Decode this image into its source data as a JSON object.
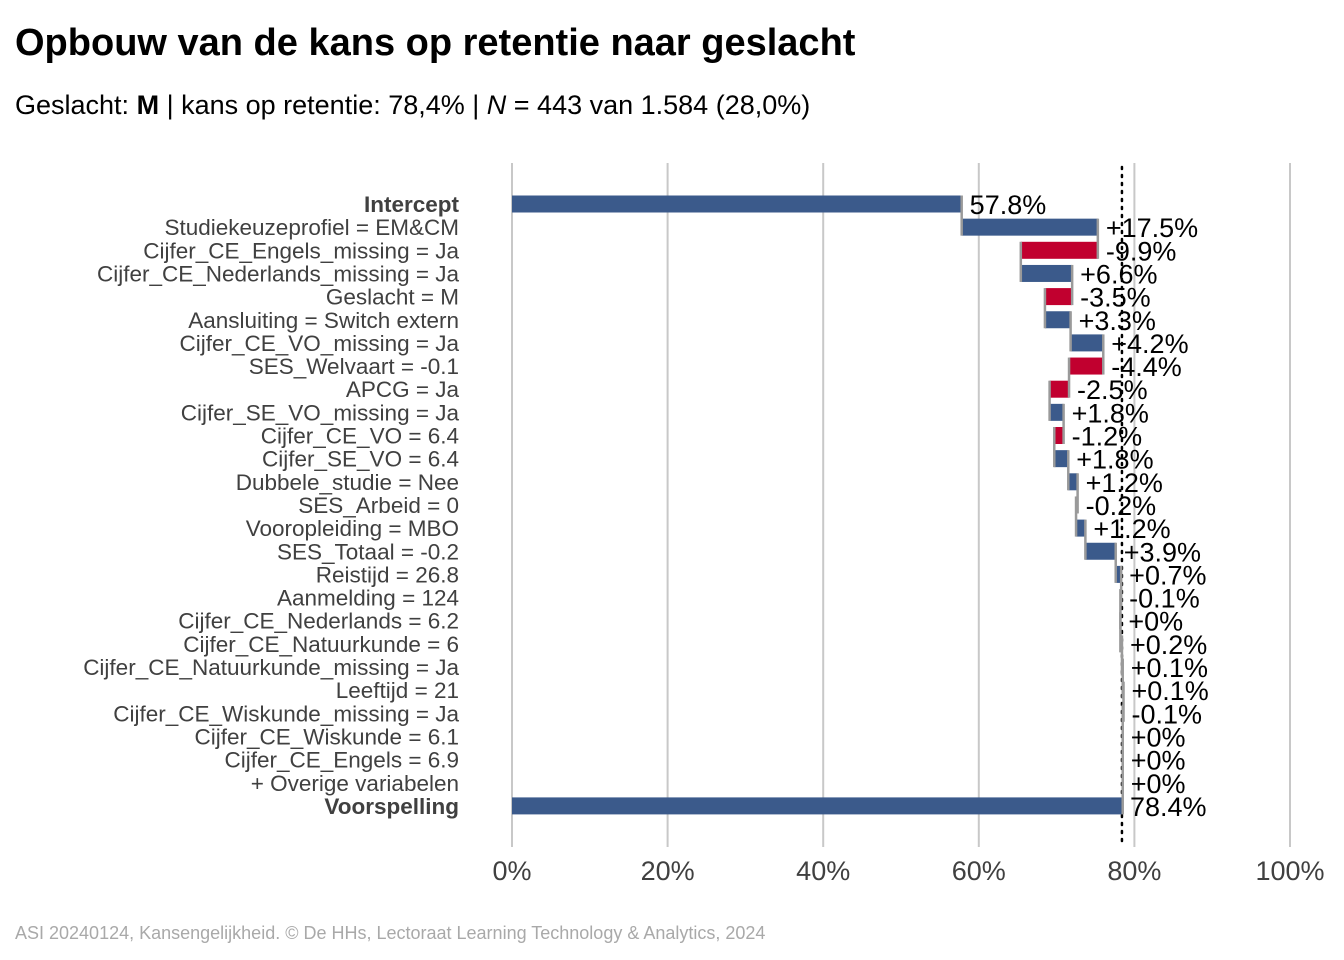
{
  "title": "Opbouw van de kans op retentie naar geslacht",
  "subtitle": {
    "label_geslacht": "Geslacht: ",
    "geslacht_value": "M",
    "sep1": " | kans op retentie: 78,4% | ",
    "n_symbol": "N",
    "n_text": " = 443 van 1.584 (28,0%)"
  },
  "caption": "ASI 20240124, Kansengelijkheid. © De HHs, Lectoraat Learning Technology & Analytics, 2024",
  "colors": {
    "positive": "#3b5a8b",
    "negative": "#c1002f",
    "grid": "#c8c8c8",
    "connector": "#9a9a9a",
    "label_text": "#404040"
  },
  "chart_data": {
    "type": "bar",
    "subtype": "waterfall",
    "orientation": "horizontal",
    "xlim": [
      0,
      100
    ],
    "x_ticks": [
      0,
      20,
      40,
      60,
      80,
      100
    ],
    "x_tick_labels": [
      "0%",
      "20%",
      "40%",
      "60%",
      "80%",
      "100%"
    ],
    "grid": true,
    "reference_line": 78.4,
    "categories": [
      "Intercept",
      "Studiekeuzeprofiel = EM&CM",
      "Cijfer_CE_Engels_missing = Ja",
      "Cijfer_CE_Nederlands_missing = Ja",
      "Geslacht = M",
      "Aansluiting = Switch extern",
      "Cijfer_CE_VO_missing = Ja",
      "SES_Welvaart = -0.1",
      "APCG = Ja",
      "Cijfer_SE_VO_missing = Ja",
      "Cijfer_CE_VO = 6.4",
      "Cijfer_SE_VO = 6.4",
      "Dubbele_studie = Nee",
      "SES_Arbeid = 0",
      "Vooropleiding = MBO",
      "SES_Totaal = -0.2",
      "Reistijd = 26.8",
      "Aanmelding = 124",
      "Cijfer_CE_Nederlands = 6.2",
      "Cijfer_CE_Natuurkunde = 6",
      "Cijfer_CE_Natuurkunde_missing = Ja",
      "Leeftijd = 21",
      "Cijfer_CE_Wiskunde_missing = Ja",
      "Cijfer_CE_Wiskunde = 6.1",
      "Cijfer_CE_Engels = 6.9",
      "+ Overige variabelen",
      "Voorspelling"
    ],
    "bold_categories": [
      "Intercept",
      "Voorspelling"
    ],
    "values": [
      57.8,
      17.5,
      -9.9,
      6.6,
      -3.5,
      3.3,
      4.2,
      -4.4,
      -2.5,
      1.8,
      -1.2,
      1.8,
      1.2,
      -0.2,
      1.2,
      3.9,
      0.7,
      -0.1,
      0,
      0.2,
      0.1,
      0.1,
      -0.1,
      0,
      0,
      0,
      78.4
    ],
    "value_labels": [
      "57.8%",
      "+17.5%",
      "-9.9%",
      "+6.6%",
      "-3.5%",
      "+3.3%",
      "+4.2%",
      "-4.4%",
      "-2.5%",
      "+1.8%",
      "-1.2%",
      "+1.8%",
      "+1.2%",
      "-0.2%",
      "+1.2%",
      "+3.9%",
      "+0.7%",
      "-0.1%",
      "+0%",
      "+0.2%",
      "+0.1%",
      "+0.1%",
      "-0.1%",
      "+0%",
      "+0%",
      "+0%",
      "78.4%"
    ]
  }
}
